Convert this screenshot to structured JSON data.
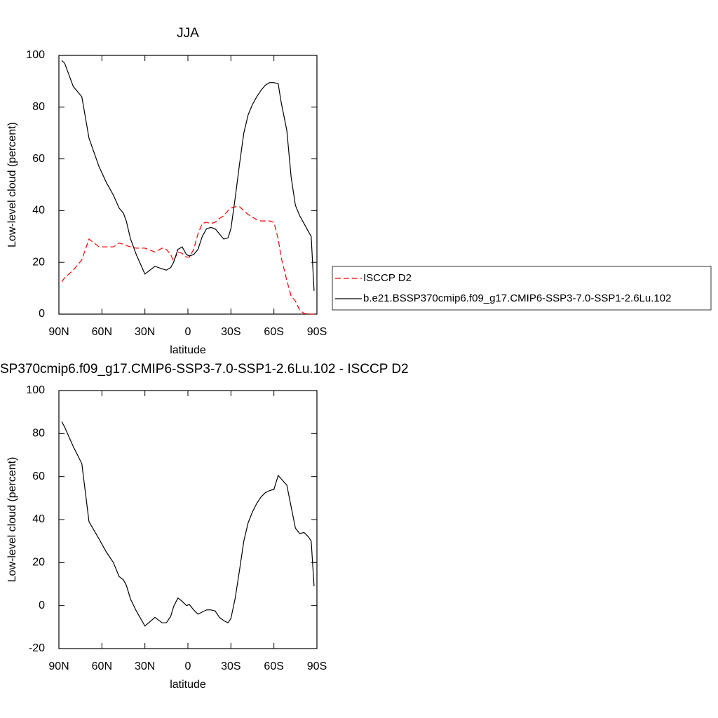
{
  "chart_data": [
    {
      "type": "line",
      "title": "JJA",
      "xlabel": "latitude",
      "ylabel": "Low-level cloud (percent)",
      "x": [
        88,
        86,
        80,
        74,
        69,
        62,
        57,
        52,
        48,
        45,
        43,
        40,
        36,
        30,
        23,
        18,
        15,
        12,
        10,
        7,
        4,
        1,
        -1,
        -4,
        -7,
        -10,
        -13,
        -16,
        -19,
        -22,
        -25,
        -28,
        -30,
        -33,
        -36,
        -39,
        -42,
        -45,
        -48,
        -51,
        -54,
        -57,
        -60,
        -63,
        -65,
        -69,
        -72,
        -75,
        -78,
        -81,
        -84,
        -86,
        -88
      ],
      "series": [
        {
          "name": "ISCCP D2",
          "color": "#ff0000",
          "linestyle": "dashed",
          "values": [
            12.5,
            14,
            17,
            21,
            29,
            26,
            26,
            26,
            27.5,
            27,
            26.5,
            26,
            25.5,
            25.5,
            24,
            25.5,
            25,
            23,
            20.5,
            24,
            23.5,
            22,
            22,
            25,
            31,
            35,
            35.5,
            35,
            35.5,
            37,
            38,
            40,
            41,
            41.5,
            41.5,
            40,
            38.5,
            37.5,
            36.5,
            36,
            36,
            36,
            35.5,
            29,
            22,
            13,
            7,
            5,
            1.5,
            0.3,
            0,
            0,
            0
          ]
        },
        {
          "name": "b.e21.BSSP370cmip6.f09_g17.CMIP6-SSP3-7.0-SSP1-2.6Lu.102",
          "color": "#000000",
          "linestyle": "solid",
          "values": [
            98,
            97,
            88,
            84,
            68,
            57,
            51,
            46,
            41,
            39,
            36,
            29,
            23,
            15.5,
            18.5,
            17.5,
            17,
            18,
            20,
            25,
            26,
            23,
            22.5,
            23,
            25,
            30,
            33,
            33.5,
            33,
            31,
            29,
            29.5,
            33,
            45,
            58,
            70,
            77,
            81,
            84,
            86.5,
            88.5,
            89.5,
            89.5,
            89,
            82,
            71,
            53,
            42,
            38,
            35,
            32,
            30,
            9
          ]
        }
      ],
      "xlim": [
        90,
        -90
      ],
      "xticks": [
        {
          "value": 90,
          "label": "90N"
        },
        {
          "value": 60,
          "label": "60N"
        },
        {
          "value": 30,
          "label": "30N"
        },
        0,
        {
          "value": -30,
          "label": "30S"
        },
        {
          "value": -60,
          "label": "60S"
        },
        {
          "value": -90,
          "label": "90S"
        }
      ],
      "ylim": [
        0,
        100
      ],
      "yticks": [
        0,
        20,
        40,
        60,
        80,
        100
      ],
      "legend": "right"
    },
    {
      "type": "line",
      "title": "SP370cmip6.f09_g17.CMIP6-SSP3-7.0-SSP1-2.6Lu.102 - ISCCP D2",
      "xlabel": "latitude",
      "ylabel": "Low-level cloud (percent)",
      "x": [
        88,
        86,
        80,
        74,
        69,
        62,
        57,
        52,
        48,
        45,
        43,
        40,
        36,
        30,
        23,
        18,
        15,
        12,
        10,
        7,
        4,
        1,
        -1,
        -4,
        -7,
        -10,
        -13,
        -16,
        -19,
        -22,
        -25,
        -28,
        -30,
        -33,
        -36,
        -39,
        -42,
        -45,
        -48,
        -51,
        -54,
        -57,
        -60,
        -63,
        -65,
        -69,
        -72,
        -75,
        -78,
        -81,
        -84,
        -86,
        -88
      ],
      "series": [
        {
          "color": "#000000",
          "linestyle": "solid",
          "values": [
            85.5,
            83,
            74,
            66,
            39,
            31,
            25,
            20,
            13.5,
            12,
            9.5,
            3,
            -2.5,
            -9.5,
            -5.5,
            -8,
            -8,
            -5,
            -0.5,
            3.5,
            2,
            0,
            0.5,
            -2,
            -4,
            -3,
            -2,
            -2,
            -2.5,
            -5.5,
            -7,
            -8,
            -6,
            3.5,
            16.5,
            30,
            38.5,
            43.5,
            47.5,
            50.5,
            52.5,
            53.5,
            54,
            60.5,
            59,
            56,
            46,
            36,
            33.5,
            34,
            32,
            30,
            9
          ]
        }
      ],
      "xlim": [
        90,
        -90
      ],
      "xticks": [
        {
          "value": 90,
          "label": "90N"
        },
        {
          "value": 60,
          "label": "60N"
        },
        {
          "value": 30,
          "label": "30N"
        },
        0,
        {
          "value": -30,
          "label": "30S"
        },
        {
          "value": -60,
          "label": "60S"
        },
        {
          "value": -90,
          "label": "90S"
        }
      ],
      "ylim": [
        -20,
        100
      ],
      "yticks": [
        -20,
        0,
        20,
        40,
        60,
        80,
        100
      ]
    }
  ]
}
